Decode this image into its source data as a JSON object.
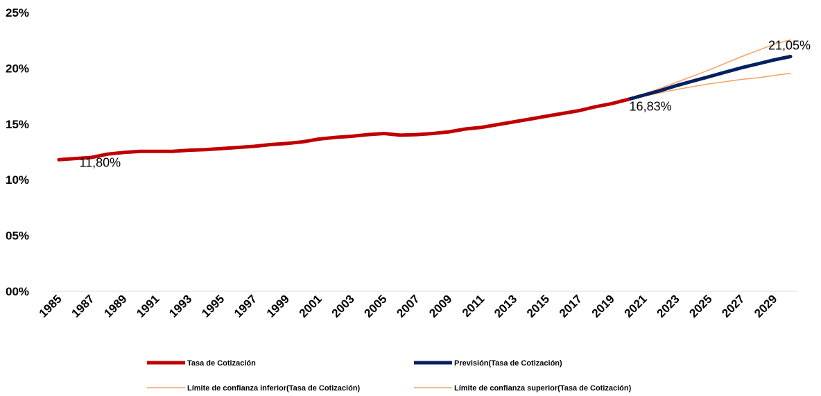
{
  "chart_data": {
    "type": "line",
    "title": "",
    "xlabel": "",
    "ylabel": "",
    "ylim": [
      0,
      25
    ],
    "xlim": [
      1985,
      2030
    ],
    "y_ticks": [
      "00%",
      "05%",
      "10%",
      "15%",
      "20%",
      "25%"
    ],
    "x_ticks": [
      "1985",
      "1987",
      "1989",
      "1991",
      "1993",
      "1995",
      "1997",
      "1999",
      "2001",
      "2003",
      "2005",
      "2007",
      "2009",
      "2011",
      "2013",
      "2015",
      "2017",
      "2019",
      "2021",
      "2023",
      "2025",
      "2027",
      "2029"
    ],
    "grid": false,
    "legend_position": "bottom",
    "series": [
      {
        "name": "Tasa de Cotización",
        "color": "#c00000",
        "x": [
          1985,
          1986,
          1987,
          1988,
          1989,
          1990,
          1991,
          1992,
          1993,
          1994,
          1995,
          1996,
          1997,
          1998,
          1999,
          2000,
          2001,
          2002,
          2003,
          2004,
          2005,
          2006,
          2007,
          2008,
          2009,
          2010,
          2011,
          2012,
          2013,
          2014,
          2015,
          2016,
          2017,
          2018,
          2019,
          2020
        ],
        "values": [
          11.8,
          11.9,
          12.0,
          12.3,
          12.45,
          12.55,
          12.55,
          12.55,
          12.65,
          12.7,
          12.8,
          12.9,
          13.0,
          13.15,
          13.25,
          13.4,
          13.65,
          13.8,
          13.9,
          14.05,
          14.15,
          14.0,
          14.05,
          14.15,
          14.3,
          14.55,
          14.7,
          14.95,
          15.2,
          15.45,
          15.7,
          15.95,
          16.2,
          16.55,
          16.83,
          17.2
        ]
      },
      {
        "name": "Previsión(Tasa de Cotización)",
        "color": "#002060",
        "x": [
          2020,
          2021,
          2022,
          2023,
          2024,
          2025,
          2026,
          2027,
          2028,
          2029,
          2030
        ],
        "values": [
          17.2,
          17.6,
          18.0,
          18.45,
          18.85,
          19.25,
          19.65,
          20.05,
          20.4,
          20.75,
          21.05
        ]
      },
      {
        "name": "Límite de confianza inferior(Tasa de Cotización)",
        "color": "#f4a261",
        "x": [
          2020,
          2021,
          2022,
          2023,
          2024,
          2025,
          2026,
          2027,
          2028,
          2029,
          2030
        ],
        "values": [
          17.2,
          17.5,
          17.8,
          18.1,
          18.35,
          18.6,
          18.8,
          19.0,
          19.15,
          19.35,
          19.55
        ]
      },
      {
        "name": "Límite de confianza superior(Tasa de Cotización)",
        "color": "#f4a261",
        "x": [
          2020,
          2021,
          2022,
          2023,
          2024,
          2025,
          2026,
          2027,
          2028,
          2029,
          2030
        ],
        "values": [
          17.2,
          17.7,
          18.2,
          18.75,
          19.3,
          19.85,
          20.45,
          21.05,
          21.6,
          22.15,
          22.55
        ]
      }
    ],
    "data_labels": [
      {
        "x": 1986,
        "y": 11.8,
        "text": "11,80%"
      },
      {
        "x": 2020,
        "y": 16.83,
        "text": "16,83%"
      },
      {
        "x": 2030,
        "y": 21.05,
        "text": "21,05%"
      }
    ]
  }
}
